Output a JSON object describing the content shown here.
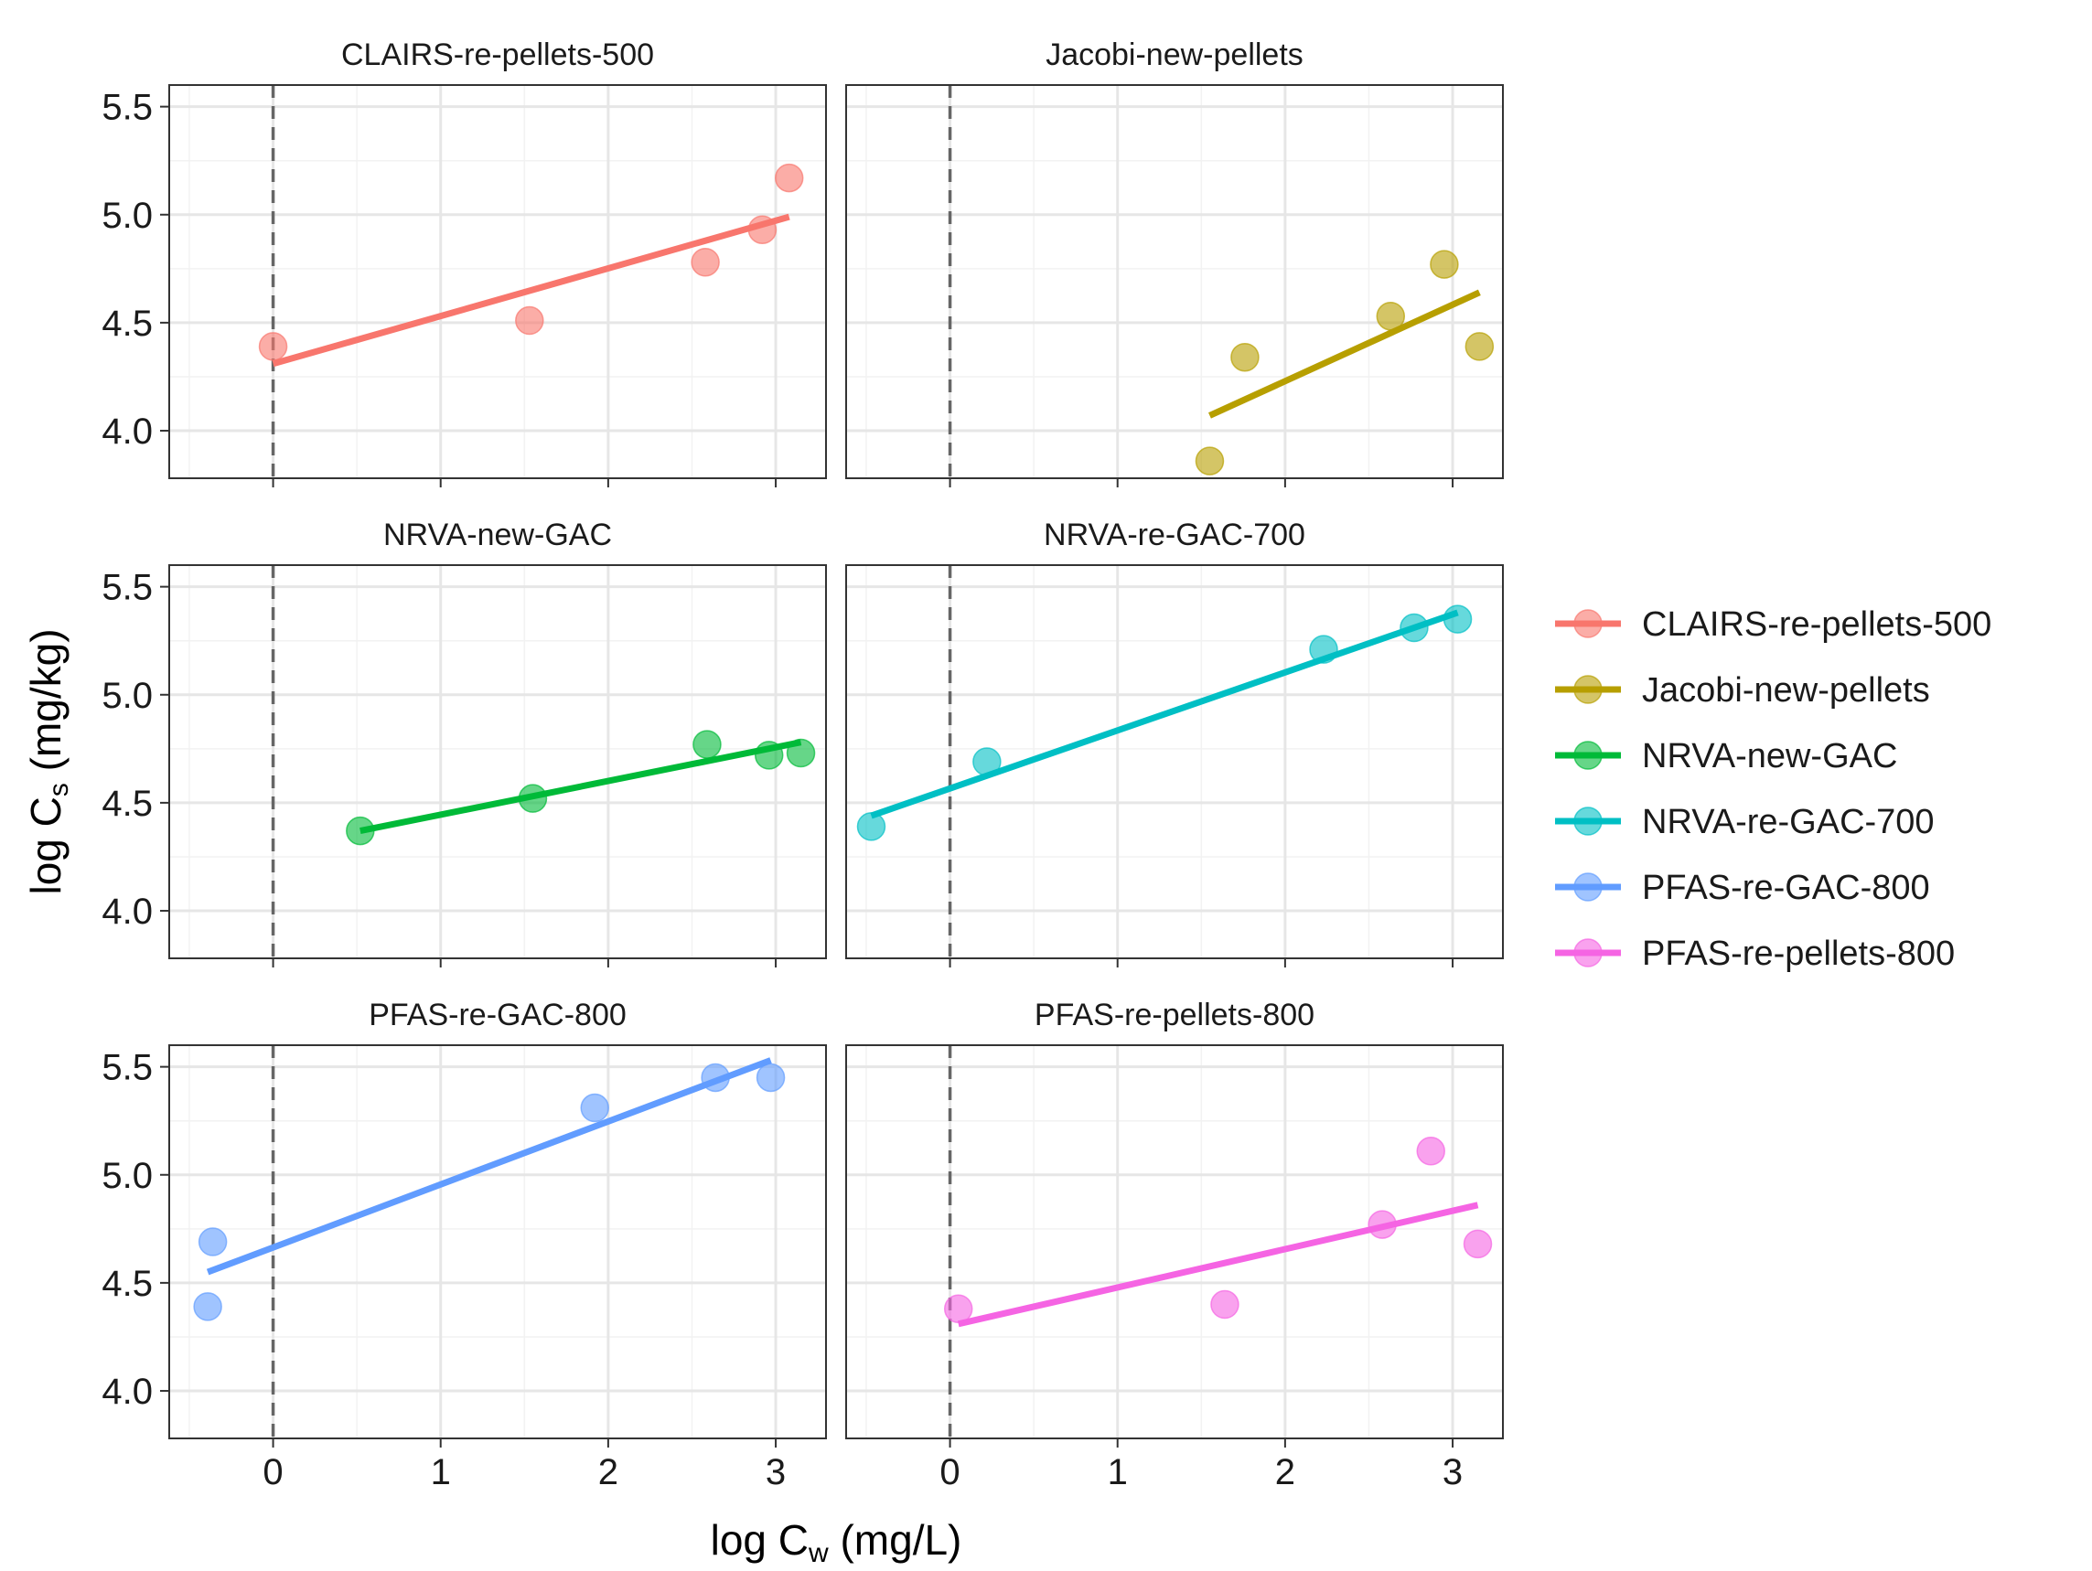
{
  "chart_data": {
    "type": "scatter",
    "xlabel": {
      "main": "log C",
      "sub": "w",
      "unit": " (mg/L)"
    },
    "ylabel": {
      "main": "log C",
      "sub": "s",
      "unit": " (mg/kg)"
    },
    "xlim": [
      -0.62,
      3.3
    ],
    "ylim": [
      3.78,
      5.6
    ],
    "x_ticks": [
      0,
      1,
      2,
      3
    ],
    "y_ticks": [
      4.0,
      4.5,
      5.0,
      5.5
    ],
    "x_tick_labels": [
      "0",
      "1",
      "2",
      "3"
    ],
    "y_tick_labels": [
      "4.0",
      "4.5",
      "5.0",
      "5.5"
    ],
    "reference_line_x": 0,
    "grid": true,
    "legend_position": "right",
    "legend": [
      "CLAIRS-re-pellets-500",
      "Jacobi-new-pellets",
      "NRVA-new-GAC",
      "NRVA-re-GAC-700",
      "PFAS-re-GAC-800",
      "PFAS-re-pellets-800"
    ],
    "panels": [
      {
        "title": "CLAIRS-re-pellets-500",
        "color": "#F8766D",
        "points": [
          [
            0.0,
            4.39
          ],
          [
            1.53,
            4.51
          ],
          [
            2.58,
            4.78
          ],
          [
            2.92,
            4.93
          ],
          [
            3.08,
            5.17
          ]
        ],
        "fit": {
          "x": [
            0.0,
            3.08
          ],
          "y": [
            4.31,
            4.99
          ]
        }
      },
      {
        "title": "Jacobi-new-pellets",
        "color": "#B79F00",
        "points": [
          [
            1.55,
            3.86
          ],
          [
            1.76,
            4.34
          ],
          [
            2.63,
            4.53
          ],
          [
            2.95,
            4.77
          ],
          [
            3.16,
            4.39
          ]
        ],
        "fit": {
          "x": [
            1.55,
            3.16
          ],
          "y": [
            4.07,
            4.64
          ]
        }
      },
      {
        "title": "NRVA-new-GAC",
        "color": "#00BA38",
        "points": [
          [
            0.52,
            4.37
          ],
          [
            1.55,
            4.52
          ],
          [
            2.59,
            4.77
          ],
          [
            2.96,
            4.72
          ],
          [
            3.15,
            4.73
          ]
        ],
        "fit": {
          "x": [
            0.52,
            3.15
          ],
          "y": [
            4.37,
            4.78
          ]
        }
      },
      {
        "title": "NRVA-re-GAC-700",
        "color": "#00BFC4",
        "points": [
          [
            -0.47,
            4.39
          ],
          [
            0.22,
            4.69
          ],
          [
            2.23,
            5.21
          ],
          [
            2.77,
            5.31
          ],
          [
            3.03,
            5.35
          ]
        ],
        "fit": {
          "x": [
            -0.47,
            3.03
          ],
          "y": [
            4.44,
            5.38
          ]
        }
      },
      {
        "title": "PFAS-re-GAC-800",
        "color": "#619CFF",
        "points": [
          [
            -0.39,
            4.39
          ],
          [
            -0.36,
            4.69
          ],
          [
            1.92,
            5.31
          ],
          [
            2.64,
            5.45
          ],
          [
            2.97,
            5.45
          ]
        ],
        "fit": {
          "x": [
            -0.39,
            2.97
          ],
          "y": [
            4.55,
            5.53
          ]
        }
      },
      {
        "title": "PFAS-re-pellets-800",
        "color": "#F564E3",
        "points": [
          [
            0.05,
            4.38
          ],
          [
            1.64,
            4.4
          ],
          [
            2.58,
            4.77
          ],
          [
            2.87,
            5.11
          ],
          [
            3.15,
            4.68
          ]
        ],
        "fit": {
          "x": [
            0.05,
            3.15
          ],
          "y": [
            4.31,
            4.86
          ]
        }
      }
    ]
  }
}
